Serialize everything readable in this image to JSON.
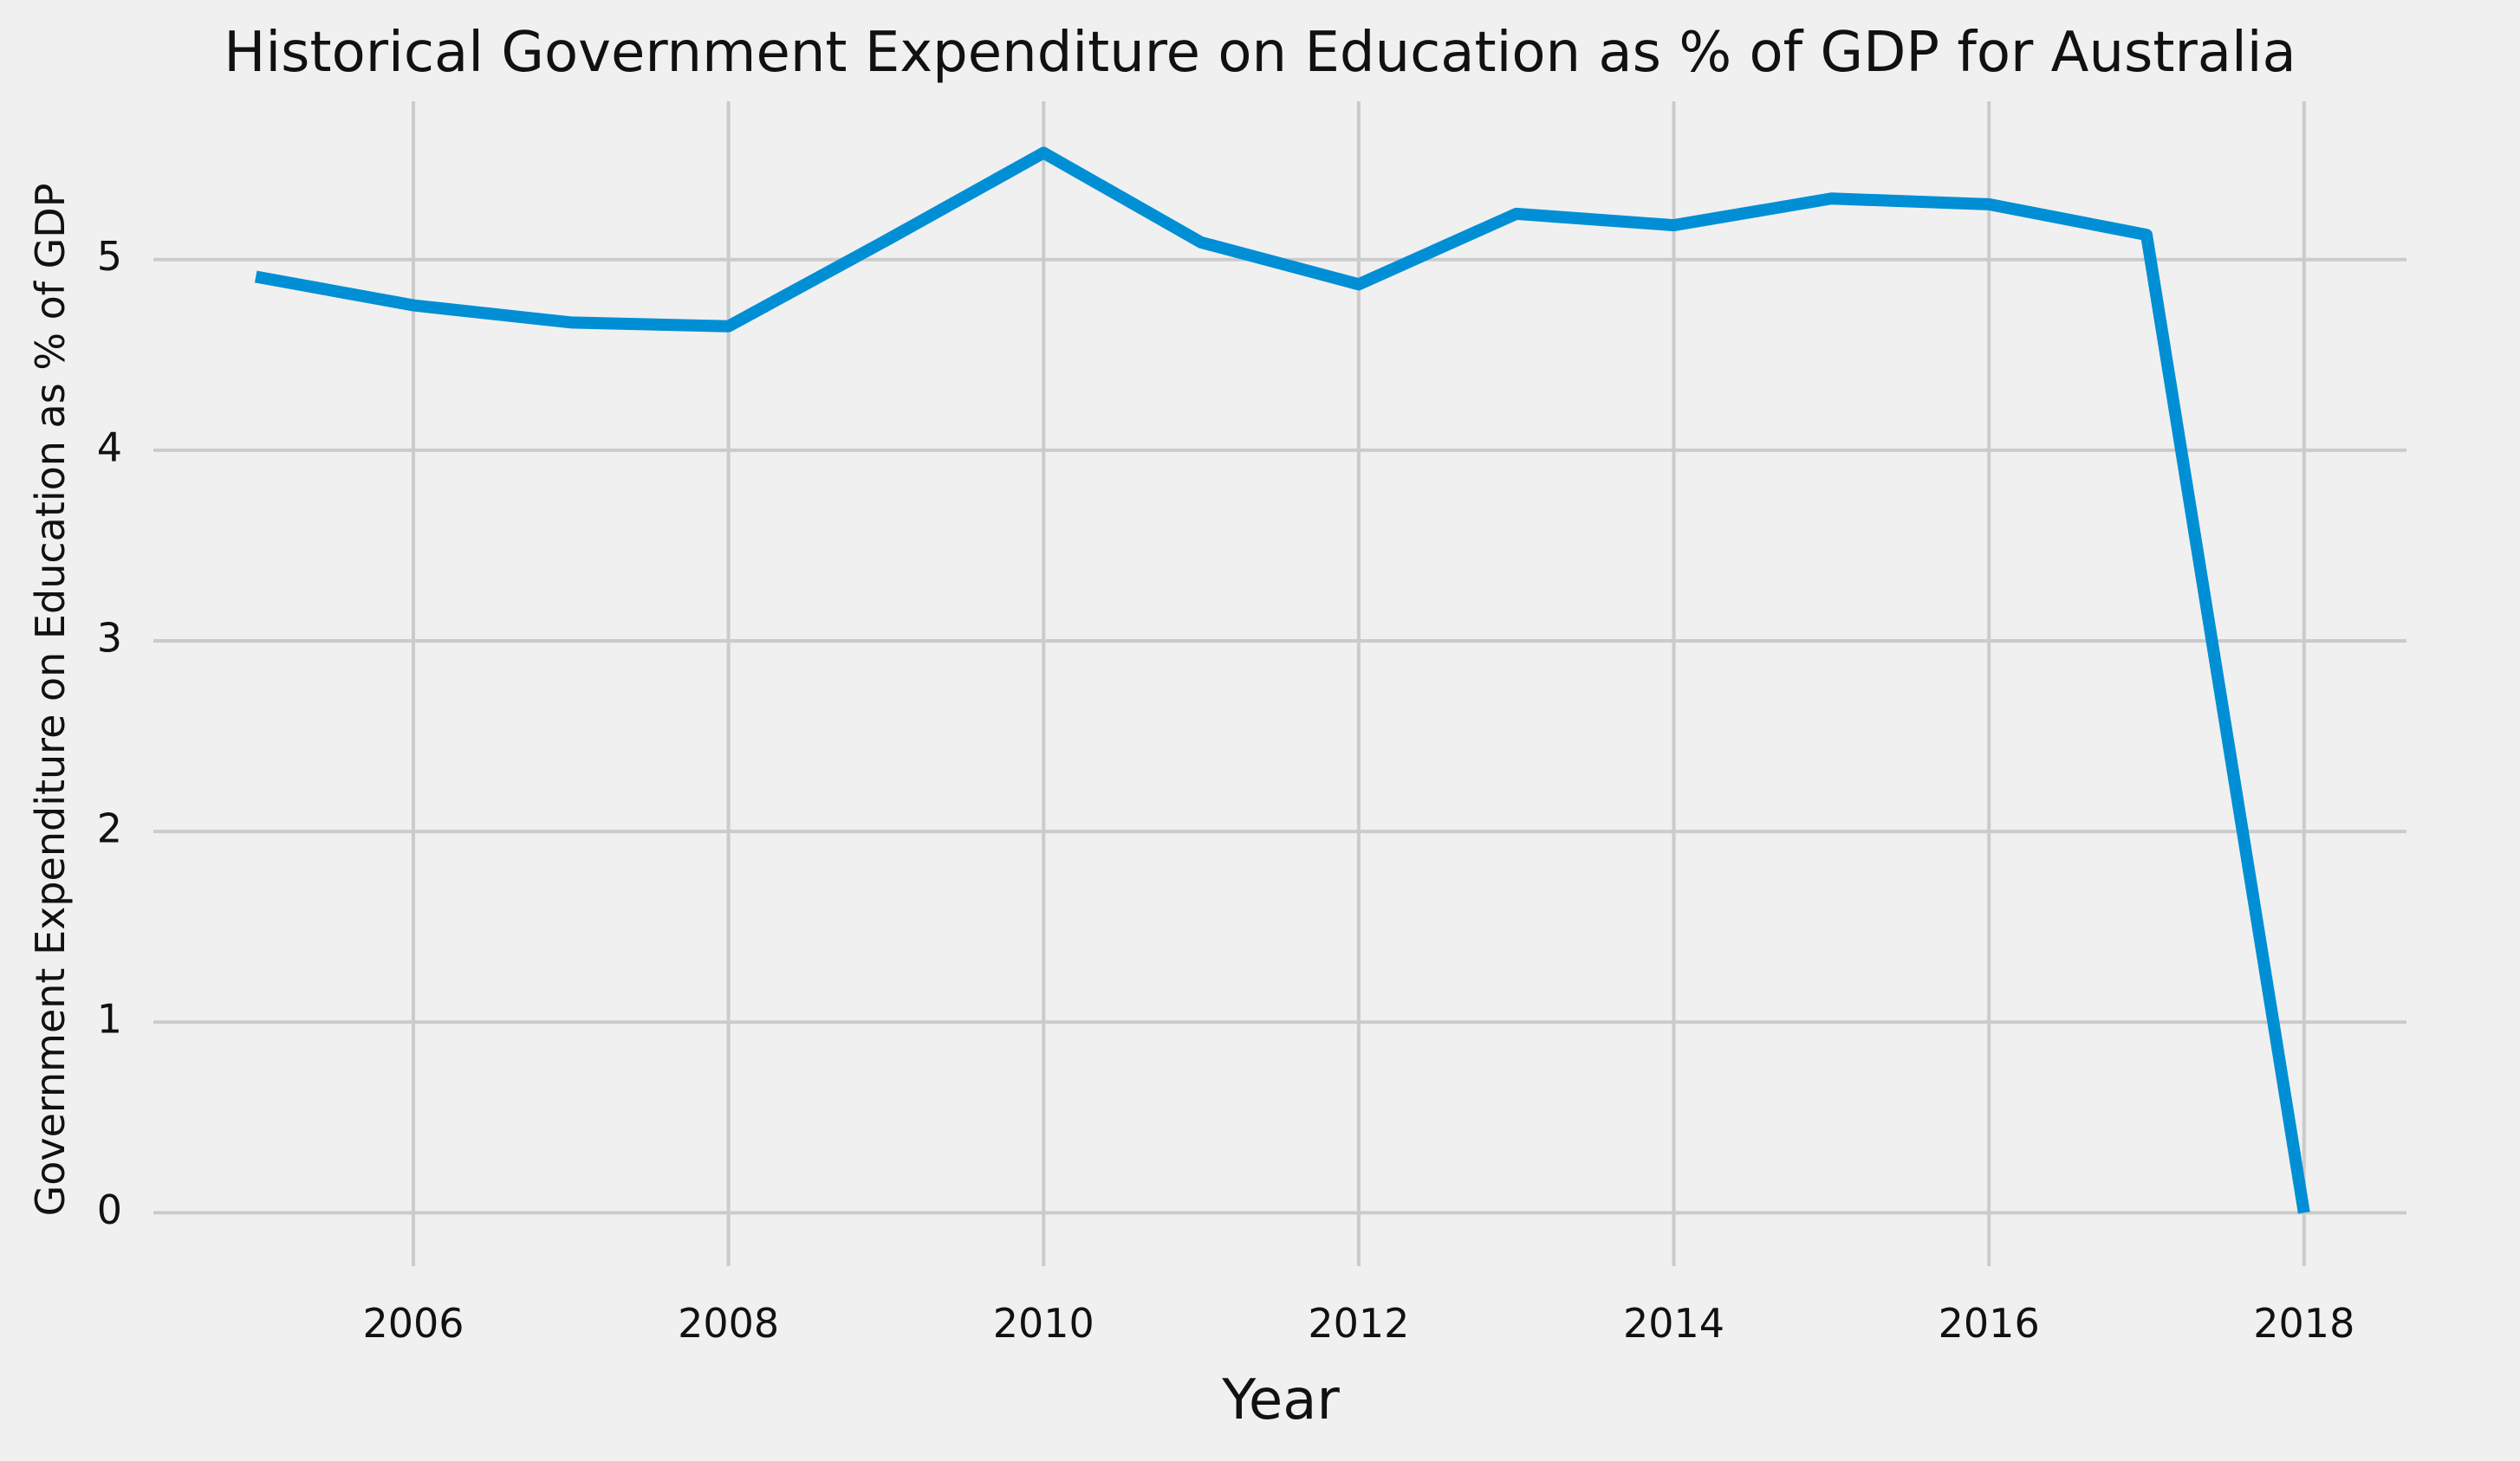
{
  "chart_data": {
    "type": "line",
    "title": "Historical Government Expenditure on Education as % of GDP for Australia",
    "xlabel": "Year",
    "ylabel": "Government Expenditure on Education as % of GDP",
    "x": [
      2005,
      2006,
      2007,
      2008,
      2009,
      2010,
      2011,
      2012,
      2013,
      2014,
      2015,
      2016,
      2017,
      2018
    ],
    "series": [
      {
        "values": [
          4.91,
          4.76,
          4.67,
          4.65,
          5.1,
          5.56,
          5.09,
          4.87,
          5.24,
          5.18,
          5.32,
          5.29,
          5.13,
          0.0
        ]
      }
    ],
    "xlim": [
      2004.35,
      2018.65
    ],
    "ylim": [
      -0.28,
      5.83
    ],
    "x_ticks": [
      2006,
      2008,
      2010,
      2012,
      2014,
      2016,
      2018
    ],
    "y_ticks": [
      0,
      1,
      2,
      3,
      4,
      5
    ],
    "grid": true,
    "line_color": "#008fd5",
    "background_color": "#f0f0f0",
    "grid_color": "#cbcbcb"
  }
}
